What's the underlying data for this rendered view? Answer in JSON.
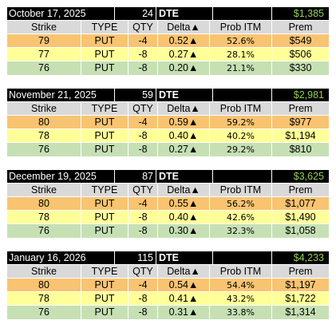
{
  "column_headers": {
    "strike": "Strike",
    "type": "TYPE",
    "qty": "QTY",
    "delta": "Delta▲",
    "prob_itm": "Prob ITM",
    "prem": "Prem"
  },
  "dte_label": "DTE",
  "groups": [
    {
      "date": "October 17, 2025",
      "dte": "24",
      "total": "$1,385",
      "rows": [
        {
          "strike": "79",
          "type": "PUT",
          "qty": "-4",
          "delta": "0.52▲",
          "prob_itm": "52.6%",
          "prem": "$549"
        },
        {
          "strike": "77",
          "type": "PUT",
          "qty": "-8",
          "delta": "0.27▲",
          "prob_itm": "28.1%",
          "prem": "$506"
        },
        {
          "strike": "76",
          "type": "PUT",
          "qty": "-8",
          "delta": "0.20▲",
          "prob_itm": "21.1%",
          "prem": "$330"
        }
      ]
    },
    {
      "date": "November 21, 2025",
      "dte": "59",
      "total": "$2,981",
      "rows": [
        {
          "strike": "80",
          "type": "PUT",
          "qty": "-4",
          "delta": "0.59▲",
          "prob_itm": "59.2%",
          "prem": "$977"
        },
        {
          "strike": "78",
          "type": "PUT",
          "qty": "-8",
          "delta": "0.40▲",
          "prob_itm": "40.2%",
          "prem": "$1,194"
        },
        {
          "strike": "76",
          "type": "PUT",
          "qty": "-8",
          "delta": "0.27▲",
          "prob_itm": "29.2%",
          "prem": "$810"
        }
      ]
    },
    {
      "date": "December 19, 2025",
      "dte": "87",
      "total": "$3,625",
      "rows": [
        {
          "strike": "80",
          "type": "PUT",
          "qty": "-4",
          "delta": "0.55▲",
          "prob_itm": "56.2%",
          "prem": "$1,077"
        },
        {
          "strike": "78",
          "type": "PUT",
          "qty": "-8",
          "delta": "0.40▲",
          "prob_itm": "42.6%",
          "prem": "$1,490"
        },
        {
          "strike": "76",
          "type": "PUT",
          "qty": "-8",
          "delta": "0.30▲",
          "prob_itm": "32.3%",
          "prem": "$1,058"
        }
      ]
    },
    {
      "date": "January 16, 2026",
      "dte": "115",
      "total": "$4,233",
      "rows": [
        {
          "strike": "80",
          "type": "PUT",
          "qty": "-4",
          "delta": "0.54▲",
          "prob_itm": "54.4%",
          "prem": "$1,197"
        },
        {
          "strike": "78",
          "type": "PUT",
          "qty": "-8",
          "delta": "0.41▲",
          "prob_itm": "43.2%",
          "prem": "$1,722"
        },
        {
          "strike": "76",
          "type": "PUT",
          "qty": "-8",
          "delta": "0.31▲",
          "prob_itm": "33.8%",
          "prem": "$1,314"
        }
      ]
    }
  ],
  "colors": {
    "header_bg": "#000000",
    "total_text": "#92d050",
    "column_header_bg": "#d9d9d9",
    "row1_bg": "#f8c471",
    "row2_bg": "#ffff99",
    "row3_bg": "#c6e0b4"
  }
}
